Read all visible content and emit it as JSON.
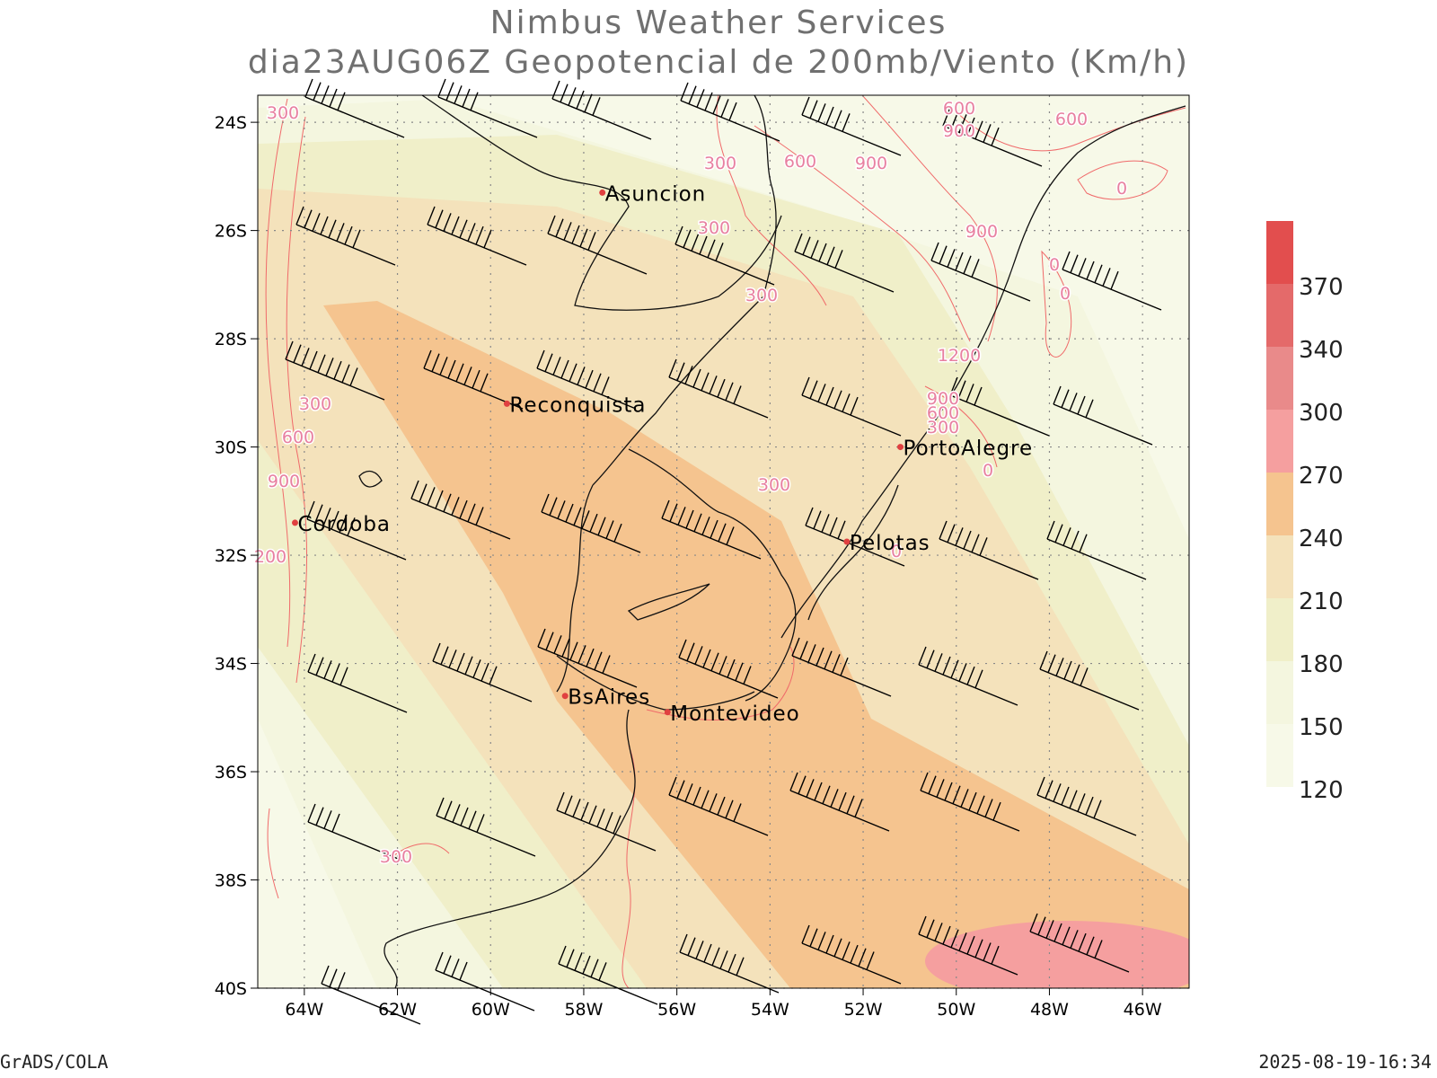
{
  "title": {
    "line1": "Nimbus Weather Services",
    "line2": "dia23AUG06Z Geopotencial de 200mb/Viento (Km/h)"
  },
  "footer": {
    "left": "GrADS/COLA",
    "right": "2025-08-19-16:34"
  },
  "axes": {
    "lat_labels": [
      "24S",
      "26S",
      "28S",
      "30S",
      "32S",
      "34S",
      "36S",
      "38S",
      "40S"
    ],
    "lon_labels": [
      "64W",
      "62W",
      "60W",
      "58W",
      "56W",
      "54W",
      "52W",
      "50W",
      "48W",
      "46W"
    ],
    "lon_range": [
      -65,
      -45
    ],
    "lat_range": [
      -40,
      -23.5
    ]
  },
  "colorbar": {
    "levels": [
      "120",
      "150",
      "180",
      "210",
      "240",
      "270",
      "300",
      "340",
      "370"
    ],
    "colors": [
      "#f7f9e8",
      "#f4f6df",
      "#f0efc9",
      "#f4e2bb",
      "#f5c48f",
      "#f59f9f",
      "#e98a8a",
      "#e46a6a",
      "#e24e4e"
    ]
  },
  "cities": [
    {
      "name": "Asuncion",
      "lon": -57.6,
      "lat": -25.3
    },
    {
      "name": "Reconquista",
      "lon": -59.65,
      "lat": -29.2
    },
    {
      "name": "PortoAlegre",
      "lon": -51.2,
      "lat": -30.0
    },
    {
      "name": "Cordoba",
      "lon": -64.2,
      "lat": -31.4
    },
    {
      "name": "Pelotas",
      "lon": -52.35,
      "lat": -31.75
    },
    {
      "name": "BsAires",
      "lon": -58.4,
      "lat": -34.6
    },
    {
      "name": "Montevideo",
      "lon": -56.2,
      "lat": -34.9
    }
  ],
  "contour_labels": [
    "300",
    "600",
    "900",
    "1200",
    "0",
    "200"
  ],
  "city_marker_color": "#e04040",
  "contour_color": "#f06a6a",
  "contour_label_color": "#e880a0"
}
